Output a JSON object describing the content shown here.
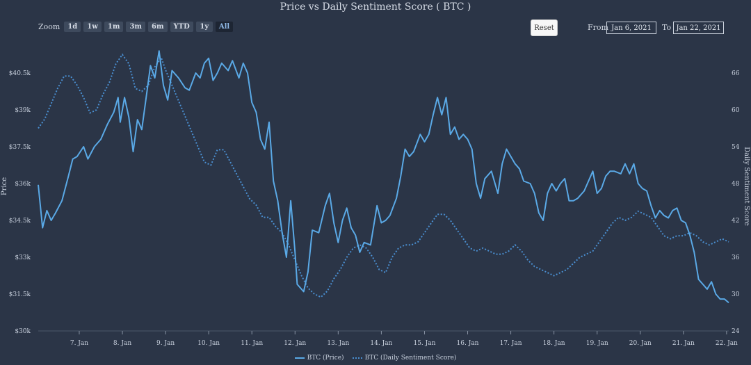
{
  "title": "Price vs Daily Sentiment Score ( BTC )",
  "zoom": {
    "label": "Zoom",
    "buttons": [
      "1d",
      "1w",
      "1m",
      "3m",
      "6m",
      "YTD",
      "1y",
      "All"
    ]
  },
  "reset_label": "Reset",
  "range": {
    "from_label": "From",
    "from_value": "Jan 6, 2021",
    "to_label": "To",
    "to_value": "Jan 22, 2021"
  },
  "colors": {
    "background": "#2b3547",
    "price": "#5aa9e6",
    "sentiment": "#4a8fd1"
  },
  "chart_data": {
    "type": "line",
    "title": "Price vs Daily Sentiment Score ( BTC )",
    "xlabel": "",
    "x_ticks": [
      "7. Jan",
      "8. Jan",
      "9. Jan",
      "10. Jan",
      "11. Jan",
      "12. Jan",
      "13. Jan",
      "14. Jan",
      "15. Jan",
      "16. Jan",
      "17. Jan",
      "18. Jan",
      "19. Jan",
      "20. Jan",
      "21. Jan",
      "22. Jan"
    ],
    "xlim": [
      6.05,
      22.05
    ],
    "y_left": {
      "label": "Price",
      "ticks": [
        "$30k",
        "$31.5k",
        "$33k",
        "$34.5k",
        "$36k",
        "$37.5k",
        "$39k",
        "$40.5k"
      ],
      "ylim": [
        30000,
        40500
      ]
    },
    "y_right": {
      "label": "Daily Sentiment Score",
      "ticks": [
        "24",
        "30",
        "36",
        "42",
        "48",
        "54",
        "60",
        "66"
      ],
      "ylim": [
        24,
        66
      ]
    },
    "legend_position": "bottom-center",
    "series": [
      {
        "name": "BTC (Price)",
        "axis": "left",
        "style": "solid",
        "points": [
          [
            6.05,
            35950
          ],
          [
            6.15,
            34200
          ],
          [
            6.25,
            34900
          ],
          [
            6.35,
            34500
          ],
          [
            6.45,
            34800
          ],
          [
            6.6,
            35300
          ],
          [
            6.75,
            36300
          ],
          [
            6.85,
            37000
          ],
          [
            6.95,
            37100
          ],
          [
            7.1,
            37500
          ],
          [
            7.2,
            37000
          ],
          [
            7.35,
            37500
          ],
          [
            7.5,
            37800
          ],
          [
            7.65,
            38400
          ],
          [
            7.8,
            38900
          ],
          [
            7.9,
            39500
          ],
          [
            7.95,
            38500
          ],
          [
            8.05,
            39500
          ],
          [
            8.15,
            38700
          ],
          [
            8.25,
            37300
          ],
          [
            8.35,
            38600
          ],
          [
            8.45,
            38200
          ],
          [
            8.55,
            39500
          ],
          [
            8.65,
            40800
          ],
          [
            8.75,
            40300
          ],
          [
            8.85,
            41400
          ],
          [
            8.95,
            40000
          ],
          [
            9.05,
            39400
          ],
          [
            9.15,
            40600
          ],
          [
            9.3,
            40300
          ],
          [
            9.45,
            39900
          ],
          [
            9.55,
            39800
          ],
          [
            9.7,
            40500
          ],
          [
            9.8,
            40300
          ],
          [
            9.9,
            40900
          ],
          [
            10.0,
            41100
          ],
          [
            10.1,
            40200
          ],
          [
            10.2,
            40500
          ],
          [
            10.3,
            40900
          ],
          [
            10.45,
            40600
          ],
          [
            10.55,
            41000
          ],
          [
            10.7,
            40300
          ],
          [
            10.8,
            40900
          ],
          [
            10.9,
            40500
          ],
          [
            11.0,
            39300
          ],
          [
            11.1,
            38900
          ],
          [
            11.2,
            37800
          ],
          [
            11.3,
            37400
          ],
          [
            11.4,
            38500
          ],
          [
            11.5,
            36100
          ],
          [
            11.6,
            35300
          ],
          [
            11.7,
            34000
          ],
          [
            11.8,
            33000
          ],
          [
            11.9,
            35300
          ],
          [
            12.0,
            33200
          ],
          [
            12.05,
            31900
          ],
          [
            12.2,
            31600
          ],
          [
            12.3,
            32400
          ],
          [
            12.4,
            34100
          ],
          [
            12.55,
            34000
          ],
          [
            12.7,
            35100
          ],
          [
            12.8,
            35600
          ],
          [
            12.9,
            34400
          ],
          [
            13.0,
            33600
          ],
          [
            13.1,
            34500
          ],
          [
            13.2,
            35000
          ],
          [
            13.3,
            34200
          ],
          [
            13.4,
            33900
          ],
          [
            13.5,
            33200
          ],
          [
            13.6,
            33600
          ],
          [
            13.75,
            33500
          ],
          [
            13.9,
            35100
          ],
          [
            14.0,
            34400
          ],
          [
            14.1,
            34500
          ],
          [
            14.2,
            34700
          ],
          [
            14.35,
            35400
          ],
          [
            14.45,
            36300
          ],
          [
            14.55,
            37400
          ],
          [
            14.65,
            37100
          ],
          [
            14.75,
            37300
          ],
          [
            14.9,
            38000
          ],
          [
            15.0,
            37700
          ],
          [
            15.1,
            38000
          ],
          [
            15.2,
            38800
          ],
          [
            15.3,
            39500
          ],
          [
            15.4,
            38800
          ],
          [
            15.5,
            39500
          ],
          [
            15.6,
            38000
          ],
          [
            15.7,
            38300
          ],
          [
            15.8,
            37800
          ],
          [
            15.9,
            38000
          ],
          [
            16.0,
            37800
          ],
          [
            16.1,
            37400
          ],
          [
            16.2,
            36000
          ],
          [
            16.3,
            35400
          ],
          [
            16.4,
            36200
          ],
          [
            16.55,
            36500
          ],
          [
            16.7,
            35600
          ],
          [
            16.8,
            36800
          ],
          [
            16.9,
            37400
          ],
          [
            17.0,
            37100
          ],
          [
            17.1,
            36800
          ],
          [
            17.2,
            36600
          ],
          [
            17.3,
            36100
          ],
          [
            17.45,
            36000
          ],
          [
            17.55,
            35600
          ],
          [
            17.65,
            34800
          ],
          [
            17.75,
            34500
          ],
          [
            17.85,
            35600
          ],
          [
            17.95,
            36000
          ],
          [
            18.05,
            35700
          ],
          [
            18.15,
            36000
          ],
          [
            18.25,
            36200
          ],
          [
            18.35,
            35300
          ],
          [
            18.45,
            35300
          ],
          [
            18.55,
            35400
          ],
          [
            18.7,
            35700
          ],
          [
            18.8,
            36100
          ],
          [
            18.9,
            36500
          ],
          [
            19.0,
            35600
          ],
          [
            19.1,
            35800
          ],
          [
            19.2,
            36300
          ],
          [
            19.3,
            36500
          ],
          [
            19.4,
            36500
          ],
          [
            19.55,
            36400
          ],
          [
            19.65,
            36800
          ],
          [
            19.75,
            36400
          ],
          [
            19.85,
            36800
          ],
          [
            19.95,
            36000
          ],
          [
            20.05,
            35800
          ],
          [
            20.15,
            35700
          ],
          [
            20.25,
            35100
          ],
          [
            20.35,
            34600
          ],
          [
            20.45,
            34900
          ],
          [
            20.55,
            34700
          ],
          [
            20.65,
            34600
          ],
          [
            20.75,
            34900
          ],
          [
            20.85,
            35000
          ],
          [
            20.95,
            34500
          ],
          [
            21.05,
            34400
          ],
          [
            21.15,
            33900
          ],
          [
            21.25,
            33200
          ],
          [
            21.35,
            32100
          ],
          [
            21.45,
            31900
          ],
          [
            21.55,
            31700
          ],
          [
            21.65,
            32000
          ],
          [
            21.75,
            31500
          ],
          [
            21.85,
            31300
          ],
          [
            21.95,
            31300
          ],
          [
            22.05,
            31150
          ]
        ]
      },
      {
        "name": "BTC (Daily Sentiment Score)",
        "axis": "right",
        "style": "dotted",
        "points": [
          [
            6.05,
            57.0
          ],
          [
            6.2,
            58.5
          ],
          [
            6.35,
            61.0
          ],
          [
            6.5,
            63.5
          ],
          [
            6.65,
            65.5
          ],
          [
            6.8,
            65.5
          ],
          [
            6.95,
            64.0
          ],
          [
            7.1,
            62.0
          ],
          [
            7.25,
            59.5
          ],
          [
            7.4,
            60.0
          ],
          [
            7.55,
            62.5
          ],
          [
            7.7,
            64.5
          ],
          [
            7.85,
            67.5
          ],
          [
            8.0,
            69.0
          ],
          [
            8.15,
            67.5
          ],
          [
            8.3,
            63.5
          ],
          [
            8.45,
            63.0
          ],
          [
            8.6,
            64.0
          ],
          [
            8.75,
            67.0
          ],
          [
            8.9,
            68.5
          ],
          [
            9.0,
            66.5
          ],
          [
            9.15,
            64.0
          ],
          [
            9.3,
            61.5
          ],
          [
            9.45,
            59.0
          ],
          [
            9.6,
            56.5
          ],
          [
            9.75,
            54.0
          ],
          [
            9.9,
            51.5
          ],
          [
            10.05,
            51.0
          ],
          [
            10.2,
            53.5
          ],
          [
            10.35,
            53.5
          ],
          [
            10.5,
            51.5
          ],
          [
            10.65,
            49.5
          ],
          [
            10.8,
            47.5
          ],
          [
            10.95,
            45.5
          ],
          [
            11.1,
            44.5
          ],
          [
            11.25,
            42.5
          ],
          [
            11.4,
            42.5
          ],
          [
            11.55,
            41.0
          ],
          [
            11.7,
            40.0
          ],
          [
            11.85,
            38.0
          ],
          [
            12.0,
            35.5
          ],
          [
            12.15,
            33.0
          ],
          [
            12.3,
            31.0
          ],
          [
            12.45,
            30.0
          ],
          [
            12.6,
            29.5
          ],
          [
            12.75,
            30.5
          ],
          [
            12.9,
            32.5
          ],
          [
            13.05,
            34.0
          ],
          [
            13.2,
            36.0
          ],
          [
            13.35,
            37.5
          ],
          [
            13.5,
            38.0
          ],
          [
            13.65,
            37.5
          ],
          [
            13.8,
            36.0
          ],
          [
            13.95,
            34.0
          ],
          [
            14.1,
            33.5
          ],
          [
            14.25,
            36.0
          ],
          [
            14.4,
            37.5
          ],
          [
            14.55,
            38.0
          ],
          [
            14.7,
            38.0
          ],
          [
            14.85,
            38.5
          ],
          [
            15.0,
            40.0
          ],
          [
            15.15,
            41.5
          ],
          [
            15.3,
            43.0
          ],
          [
            15.45,
            43.0
          ],
          [
            15.6,
            42.0
          ],
          [
            15.75,
            40.5
          ],
          [
            15.9,
            39.0
          ],
          [
            16.05,
            37.5
          ],
          [
            16.2,
            37.0
          ],
          [
            16.35,
            37.5
          ],
          [
            16.5,
            37.0
          ],
          [
            16.65,
            36.5
          ],
          [
            16.8,
            36.5
          ],
          [
            16.95,
            37.0
          ],
          [
            17.1,
            38.0
          ],
          [
            17.25,
            37.0
          ],
          [
            17.4,
            35.5
          ],
          [
            17.55,
            34.5
          ],
          [
            17.7,
            34.0
          ],
          [
            17.85,
            33.5
          ],
          [
            18.0,
            33.0
          ],
          [
            18.15,
            33.5
          ],
          [
            18.3,
            34.0
          ],
          [
            18.45,
            35.0
          ],
          [
            18.6,
            36.0
          ],
          [
            18.75,
            36.5
          ],
          [
            18.9,
            37.0
          ],
          [
            19.05,
            38.5
          ],
          [
            19.2,
            40.0
          ],
          [
            19.35,
            41.5
          ],
          [
            19.5,
            42.5
          ],
          [
            19.65,
            42.0
          ],
          [
            19.8,
            42.5
          ],
          [
            19.95,
            43.5
          ],
          [
            20.1,
            43.0
          ],
          [
            20.25,
            42.5
          ],
          [
            20.4,
            41.0
          ],
          [
            20.55,
            39.5
          ],
          [
            20.7,
            39.0
          ],
          [
            20.85,
            39.5
          ],
          [
            21.0,
            39.5
          ],
          [
            21.15,
            40.0
          ],
          [
            21.3,
            39.5
          ],
          [
            21.45,
            38.5
          ],
          [
            21.6,
            38.0
          ],
          [
            21.75,
            38.5
          ],
          [
            21.9,
            39.0
          ],
          [
            22.05,
            38.5
          ]
        ]
      }
    ]
  }
}
